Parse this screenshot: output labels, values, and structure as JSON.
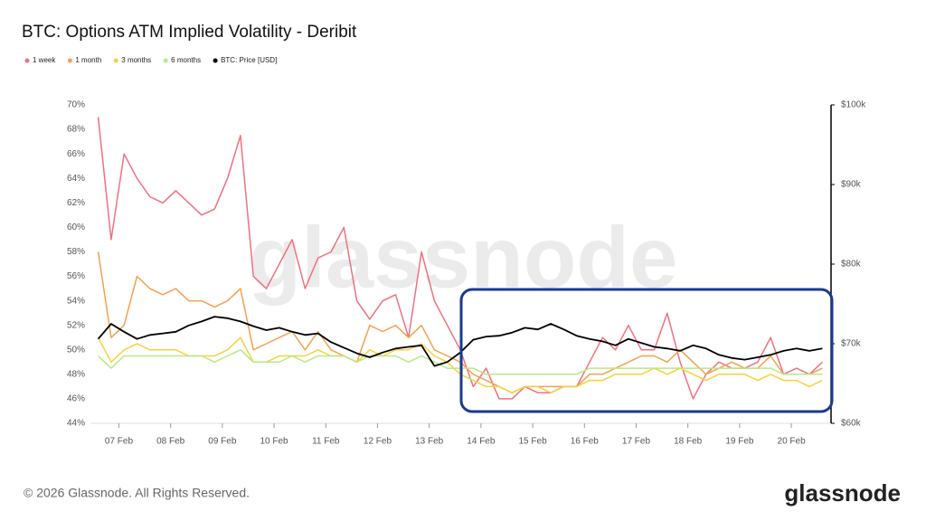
{
  "chart_data": {
    "type": "line",
    "title": "BTC: Options ATM Implied Volatility - Deribit",
    "watermark": "glassnode",
    "footer": "© 2026 Glassnode. All Rights Reserved.",
    "logo": "glassnode",
    "x": [
      6.6,
      6.85,
      7.1,
      7.35,
      7.6,
      7.85,
      8.1,
      8.35,
      8.6,
      8.85,
      9.1,
      9.35,
      9.6,
      9.85,
      10.1,
      10.35,
      10.6,
      10.85,
      11.1,
      11.35,
      11.6,
      11.85,
      12.1,
      12.35,
      12.6,
      12.85,
      13.1,
      13.35,
      13.6,
      13.85,
      14.1,
      14.35,
      14.6,
      14.85,
      15.1,
      15.35,
      15.6,
      15.85,
      16.1,
      16.35,
      16.6,
      16.85,
      17.1,
      17.35,
      17.6,
      17.85,
      18.1,
      18.35,
      18.6,
      18.85,
      19.1,
      19.35,
      19.6,
      19.85,
      20.1,
      20.35,
      20.6
    ],
    "xlim": [
      6.45,
      20.75
    ],
    "xticks": [
      {
        "value": 7,
        "label": "07 Feb"
      },
      {
        "value": 8,
        "label": "08 Feb"
      },
      {
        "value": 9,
        "label": "09 Feb"
      },
      {
        "value": 10,
        "label": "10 Feb"
      },
      {
        "value": 11,
        "label": "11 Feb"
      },
      {
        "value": 12,
        "label": "12 Feb"
      },
      {
        "value": 13,
        "label": "13 Feb"
      },
      {
        "value": 14,
        "label": "14 Feb"
      },
      {
        "value": 15,
        "label": "15 Feb"
      },
      {
        "value": 16,
        "label": "16 Feb"
      },
      {
        "value": 17,
        "label": "17 Feb"
      },
      {
        "value": 18,
        "label": "18 Feb"
      },
      {
        "value": 19,
        "label": "19 Feb"
      },
      {
        "value": 20,
        "label": "20 Feb"
      }
    ],
    "ylim": [
      44,
      70
    ],
    "yticks": [
      {
        "value": 44,
        "label": "44%"
      },
      {
        "value": 46,
        "label": "46%"
      },
      {
        "value": 48,
        "label": "48%"
      },
      {
        "value": 50,
        "label": "50%"
      },
      {
        "value": 52,
        "label": "52%"
      },
      {
        "value": 54,
        "label": "54%"
      },
      {
        "value": 56,
        "label": "56%"
      },
      {
        "value": 58,
        "label": "58%"
      },
      {
        "value": 60,
        "label": "60%"
      },
      {
        "value": 62,
        "label": "62%"
      },
      {
        "value": 64,
        "label": "64%"
      },
      {
        "value": 66,
        "label": "66%"
      },
      {
        "value": 68,
        "label": "68%"
      },
      {
        "value": 70,
        "label": "70%"
      }
    ],
    "y2lim": [
      60000,
      100000
    ],
    "y2ticks": [
      {
        "value": 60000,
        "label": "$60k"
      },
      {
        "value": 70000,
        "label": "$70k"
      },
      {
        "value": 80000,
        "label": "$80k"
      },
      {
        "value": 90000,
        "label": "$90k"
      },
      {
        "value": 100000,
        "label": "$100k"
      }
    ],
    "grid": false,
    "series": [
      {
        "name": "1 week",
        "color": "#f0717f",
        "values": [
          69,
          59,
          66,
          64,
          62.5,
          62,
          63,
          62,
          61,
          61.5,
          64,
          67.5,
          56,
          55,
          57,
          59,
          55,
          57.5,
          58,
          60,
          54,
          52.5,
          54,
          54.5,
          51,
          58,
          54,
          52,
          50,
          47,
          48.5,
          46,
          46,
          47,
          46.5,
          46.5,
          47,
          47,
          49,
          51,
          50,
          52,
          50,
          50,
          53,
          49,
          46,
          48,
          49,
          48.5,
          48.5,
          49,
          51,
          48,
          48.5,
          48,
          49
        ]
      },
      {
        "name": "1 month",
        "color": "#f5a050",
        "values": [
          58,
          51,
          52,
          56,
          55,
          54.5,
          55,
          54,
          54,
          53.5,
          54,
          55,
          50,
          50.5,
          51,
          51.5,
          50,
          51.5,
          50,
          49.5,
          49,
          52,
          51.5,
          52,
          51,
          52,
          50,
          49.5,
          49,
          48,
          47.5,
          47,
          46.5,
          47,
          47,
          47,
          47,
          47,
          48,
          48,
          48.5,
          49,
          49.5,
          49.5,
          49,
          50,
          49,
          48,
          48.5,
          49,
          48.5,
          48.5,
          49.5,
          48,
          48,
          48,
          48.5
        ]
      },
      {
        "name": "3 months",
        "color": "#f5d33a",
        "values": [
          51,
          49,
          50,
          50.5,
          50,
          50,
          50,
          49.5,
          49.5,
          49.5,
          50,
          51,
          49,
          49,
          49.5,
          49.5,
          49.5,
          50,
          49.5,
          49.5,
          49,
          50,
          49.5,
          50,
          50,
          50.5,
          49.5,
          49,
          48,
          47.5,
          47,
          47,
          46.5,
          47,
          47,
          46.5,
          47,
          47,
          47.5,
          47.5,
          48,
          48,
          48,
          48.5,
          48,
          48.5,
          48,
          47.5,
          48,
          48,
          48,
          47.5,
          48,
          47.5,
          47.5,
          47,
          47.5
        ]
      },
      {
        "name": "6 months",
        "color": "#b8e986",
        "values": [
          49.5,
          48.5,
          49.5,
          49.5,
          49.5,
          49.5,
          49.5,
          49.5,
          49.5,
          49,
          49.5,
          50,
          49,
          49,
          49,
          49.5,
          49,
          49.5,
          49.5,
          49.5,
          49,
          49.5,
          49.5,
          49.5,
          49,
          49.5,
          49,
          48.5,
          48.5,
          48.5,
          48,
          48,
          48,
          48,
          48,
          48,
          48,
          48,
          48.5,
          48.5,
          48.5,
          48.5,
          48.5,
          48.5,
          48.5,
          48.5,
          48.5,
          48.5,
          48.5,
          48.5,
          48.5,
          48.5,
          48.5,
          48,
          48,
          48,
          48
        ]
      },
      {
        "name": "BTC: Price [USD]",
        "color": "#000000",
        "axis": "y2",
        "values": [
          70600,
          72500,
          71500,
          70600,
          71100,
          71300,
          71500,
          72300,
          72800,
          73400,
          73200,
          72800,
          72200,
          71700,
          72000,
          71500,
          71100,
          71300,
          70200,
          69500,
          68800,
          68300,
          68900,
          69400,
          69600,
          69800,
          67200,
          67700,
          68900,
          70500,
          70900,
          71000,
          71400,
          72000,
          71800,
          72500,
          71800,
          71000,
          70600,
          70300,
          69800,
          70600,
          70100,
          69600,
          69400,
          69100,
          69800,
          69400,
          68600,
          68200,
          68000,
          68300,
          68600,
          69100,
          69400,
          69100,
          69400
        ]
      }
    ]
  }
}
